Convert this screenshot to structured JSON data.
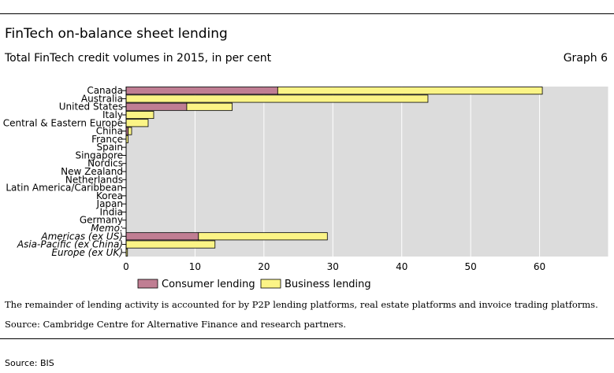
{
  "header": {
    "title": "FinTech on-balance sheet lending",
    "subtitle": "Total FinTech credit volumes in 2015, in per cent",
    "graph_number": "Graph 6"
  },
  "notes": {
    "remainder": "The remainder of lending activity is accounted for by P2P lending platforms, real estate platforms and invoice trading platforms.",
    "source": "Source: Cambridge Centre for Alternative Finance and research partners."
  },
  "footer": {
    "source": "Source: BIS"
  },
  "colors": {
    "consumer": "#c07e93",
    "business": "#fbf486",
    "plot_bg": "#dcdcdc",
    "grid": "#ffffff"
  },
  "chart_data": {
    "type": "bar",
    "orientation": "horizontal",
    "stacked": true,
    "categories": [
      "Canada",
      "Australia",
      "United States",
      "Italy",
      "Central & Eastern Europe",
      "China",
      "France",
      "Spain",
      "Singapore",
      "Nordics",
      "New Zealand",
      "Netherlands",
      "Latin America/Caribbean",
      "Korea",
      "Japan",
      "India",
      "Germany",
      "Memo:",
      "Americas (ex US)",
      "Asia-Pacific (ex China)",
      "Europe (ex UK)"
    ],
    "italic_categories": [
      "Memo:",
      "Americas (ex US)",
      "Asia-Pacific (ex China)",
      "Europe (ex UK)"
    ],
    "series": [
      {
        "name": "Consumer lending",
        "values": [
          22,
          0,
          8.8,
          0,
          0,
          0.3,
          0,
          0,
          0,
          0,
          0,
          0,
          0,
          0,
          0,
          0,
          0,
          0,
          10.5,
          0,
          0
        ]
      },
      {
        "name": "Business lending",
        "values": [
          38.4,
          43.8,
          6.6,
          4,
          3.2,
          0.5,
          0.3,
          0,
          0,
          0,
          0,
          0,
          0,
          0,
          0,
          0,
          0,
          0,
          18.7,
          12.9,
          0.2
        ]
      }
    ],
    "xlim": [
      0,
      70
    ],
    "xticks": [
      0,
      10,
      20,
      30,
      40,
      50,
      60
    ],
    "grid": true,
    "legend_position": "bottom"
  }
}
